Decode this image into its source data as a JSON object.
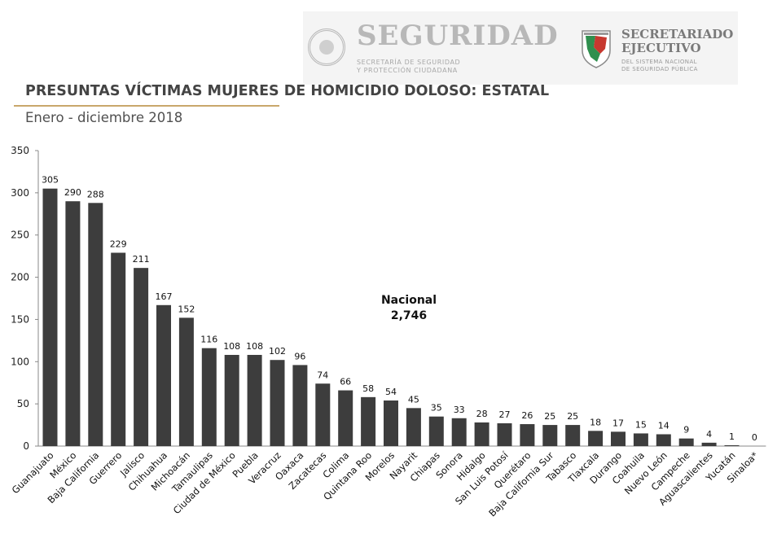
{
  "header": {
    "logo_left": {
      "name": "SEGURIDAD",
      "subtitle_line1": "SECRETARÍA DE SEGURIDAD",
      "subtitle_line2": "Y PROTECCIÓN CIUDADANA"
    },
    "logo_right": {
      "name_line1": "SECRETARIADO",
      "name_line2": "EJECUTIVO",
      "subtitle_line1": "DEL SISTEMA NACIONAL",
      "subtitle_line2": "DE SEGURIDAD PÚBLICA"
    }
  },
  "title": "PRESUNTAS VÍCTIMAS MUJERES DE HOMICIDIO DOLOSO: ESTATAL",
  "subtitle": "Enero - diciembre 2018",
  "annotation": {
    "label": "Nacional",
    "value": "2,746"
  },
  "colors": {
    "bar": "#3d3d3d",
    "title_rule": "#c9a76b"
  },
  "chart_data": {
    "type": "bar",
    "title": "PRESUNTAS VÍCTIMAS MUJERES DE HOMICIDIO DOLOSO: ESTATAL",
    "subtitle": "Enero - diciembre 2018",
    "categories": [
      "Guanajuato",
      "México",
      "Baja California",
      "Guerrero",
      "Jalisco",
      "Chihuahua",
      "Michoacán",
      "Tamaulipas",
      "Ciudad de México",
      "Puebla",
      "Veracruz",
      "Oaxaca",
      "Zacatecas",
      "Colima",
      "Quintana Roo",
      "Morelos",
      "Nayarit",
      "Chiapas",
      "Sonora",
      "Hidalgo",
      "San Luis Potosí",
      "Querétaro",
      "Baja California Sur",
      "Tabasco",
      "Tlaxcala",
      "Durango",
      "Coahuila",
      "Nuevo León",
      "Campeche",
      "Aguascalientes",
      "Yucatán",
      "Sinaloa*"
    ],
    "values": [
      305,
      290,
      288,
      229,
      211,
      167,
      152,
      116,
      108,
      108,
      102,
      96,
      74,
      66,
      58,
      54,
      45,
      35,
      33,
      28,
      27,
      26,
      25,
      25,
      18,
      17,
      15,
      14,
      9,
      4,
      1,
      0
    ],
    "ylim": [
      0,
      350
    ],
    "yticks": [
      0,
      50,
      100,
      150,
      200,
      250,
      300,
      350
    ],
    "xlabel": "",
    "ylabel": "",
    "grid": false,
    "data_labels": true
  }
}
